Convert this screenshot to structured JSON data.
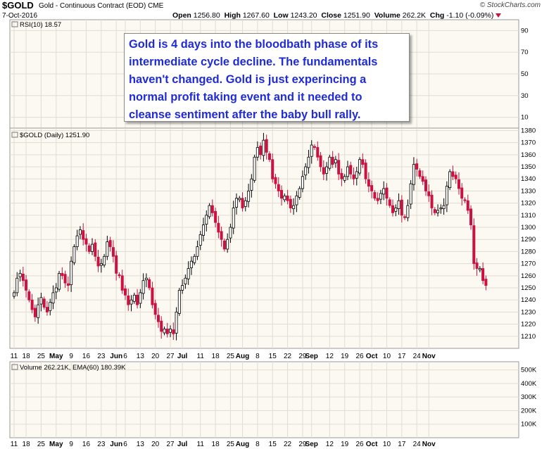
{
  "header": {
    "symbol": "$GOLD",
    "name": "Gold - Continuous Contract (EOD)",
    "exchange": "CME",
    "date": "7-Oct-2016",
    "open_label": "Open",
    "open": "1256.80",
    "high_label": "High",
    "high": "1267.60",
    "low_label": "Low",
    "low": "1243.20",
    "close_label": "Close",
    "close": "1251.90",
    "volume_label": "Volume",
    "volume": "262.2K",
    "chg_label": "Chg",
    "chg": "-1.10 (-0.09%)",
    "watermark": "© StockCharts.com"
  },
  "annotation": "Gold is 4 days into the bloodbath phase of its intermediate cycle decline. The fundamentals haven't changed. Gold is just experincing a normal profit taking event and it needed to cleanse sentiment after the baby bull rally.",
  "colors": {
    "up": "#000000",
    "down": "#cc1040",
    "annotation_text": "#1f2bd6",
    "panel_bg": "#fbf9f1",
    "grid": "#e2ddd0",
    "volume_bar": "#888888"
  },
  "chart_data": [
    {
      "type": "line",
      "panel": "RSI",
      "legend": "RSI(10) 18.57",
      "y_ticks": [
        90,
        70,
        50,
        30,
        10
      ],
      "ylim": [
        0,
        100
      ]
    },
    {
      "type": "candlestick",
      "panel": "price",
      "legend": "$GOLD (Daily) 1251.90",
      "ylim": [
        1200,
        1382
      ],
      "y_ticks": [
        1210,
        1220,
        1230,
        1240,
        1250,
        1260,
        1270,
        1280,
        1290,
        1300,
        1310,
        1320,
        1330,
        1340,
        1350,
        1360,
        1370,
        1380
      ],
      "x_ticks": [
        {
          "label": "11",
          "i": 0
        },
        {
          "label": "18",
          "i": 4
        },
        {
          "label": "25",
          "i": 9
        },
        {
          "label": "May",
          "i": 14
        },
        {
          "label": "9",
          "i": 19
        },
        {
          "label": "16",
          "i": 24
        },
        {
          "label": "23",
          "i": 29
        },
        {
          "label": "Jun",
          "i": 34
        },
        {
          "label": "6",
          "i": 37
        },
        {
          "label": "13",
          "i": 42
        },
        {
          "label": "20",
          "i": 47
        },
        {
          "label": "27",
          "i": 52
        },
        {
          "label": "Jul",
          "i": 56
        },
        {
          "label": "11",
          "i": 62
        },
        {
          "label": "18",
          "i": 67
        },
        {
          "label": "25",
          "i": 72
        },
        {
          "label": "Aug",
          "i": 76
        },
        {
          "label": "8",
          "i": 81
        },
        {
          "label": "15",
          "i": 86
        },
        {
          "label": "22",
          "i": 91
        },
        {
          "label": "29",
          "i": 96
        },
        {
          "label": "Sep",
          "i": 99
        },
        {
          "label": "12",
          "i": 105
        },
        {
          "label": "19",
          "i": 110
        },
        {
          "label": "26",
          "i": 115
        },
        {
          "label": "Oct",
          "i": 119
        },
        {
          "label": "10",
          "i": 124
        },
        {
          "label": "17",
          "i": 129
        },
        {
          "label": "24",
          "i": 134
        },
        {
          "label": "Nov",
          "i": 138
        }
      ],
      "close": [
        1246,
        1258,
        1262,
        1256,
        1248,
        1240,
        1232,
        1226,
        1236,
        1242,
        1234,
        1230,
        1238,
        1246,
        1250,
        1262,
        1260,
        1254,
        1252,
        1272,
        1284,
        1293,
        1298,
        1290,
        1286,
        1280,
        1286,
        1276,
        1268,
        1270,
        1276,
        1288,
        1284,
        1276,
        1262,
        1260,
        1248,
        1244,
        1236,
        1240,
        1244,
        1236,
        1246,
        1256,
        1258,
        1250,
        1236,
        1228,
        1222,
        1214,
        1216,
        1212,
        1216,
        1212,
        1230,
        1248,
        1252,
        1258,
        1266,
        1272,
        1276,
        1284,
        1294,
        1302,
        1310,
        1318,
        1312,
        1304,
        1296,
        1290,
        1282,
        1290,
        1300,
        1316,
        1324,
        1324,
        1316,
        1322,
        1330,
        1340,
        1358,
        1366,
        1360,
        1372,
        1362,
        1356,
        1340,
        1336,
        1330,
        1324,
        1326,
        1322,
        1316,
        1318,
        1326,
        1332,
        1342,
        1350,
        1358,
        1368,
        1366,
        1358,
        1350,
        1344,
        1350,
        1358,
        1352,
        1356,
        1344,
        1340,
        1342,
        1350,
        1344,
        1340,
        1346,
        1356,
        1352,
        1340,
        1334,
        1330,
        1324,
        1322,
        1328,
        1332,
        1324,
        1318,
        1312,
        1316,
        1322,
        1310,
        1308,
        1318,
        1336,
        1352,
        1348,
        1342,
        1338,
        1330,
        1326,
        1316,
        1312,
        1314,
        1316,
        1318,
        1334,
        1346,
        1342,
        1340,
        1332,
        1324,
        1322,
        1314,
        1302,
        1270,
        1266,
        1266,
        1256,
        1252
      ],
      "up_down": "up candles hollow black, down candles filled red"
    },
    {
      "type": "bar",
      "panel": "volume",
      "legend": "Volume 262.21K, EMA(60) 180.39K",
      "y_ticks": [
        "500K",
        "400K",
        "300K",
        "200K",
        "100K"
      ],
      "ylim": [
        0,
        560
      ]
    }
  ]
}
